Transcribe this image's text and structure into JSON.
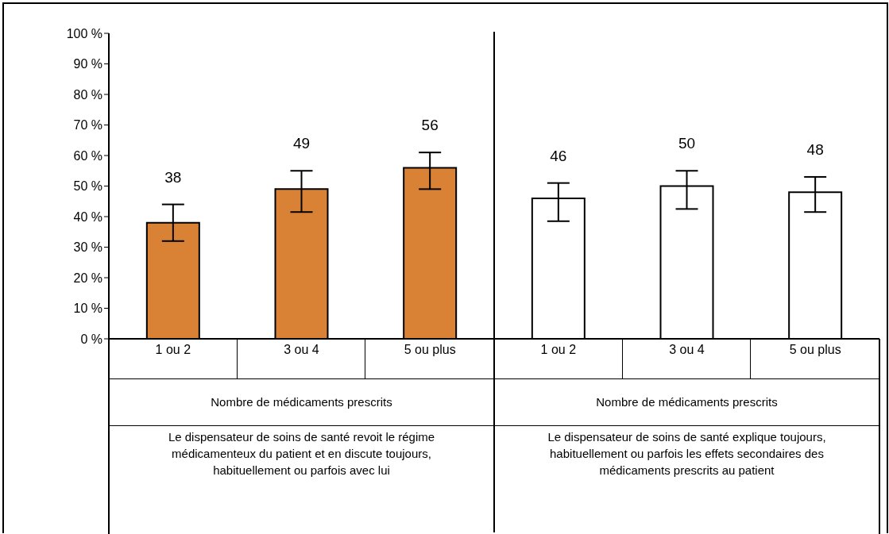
{
  "chart_data": {
    "type": "bar",
    "categories": [
      "1 ou 2",
      "3 ou 4",
      "5 ou plus",
      "1 ou 2",
      "3 ou 4",
      "5 ou plus"
    ],
    "values": [
      38,
      49,
      56,
      46,
      50,
      48
    ],
    "colors": [
      "#d98236",
      "#d98236",
      "#d98236",
      "#ffffff",
      "#ffffff",
      "#ffffff"
    ],
    "errors": [
      [
        32,
        44
      ],
      [
        41.5,
        55
      ],
      [
        49,
        61
      ],
      [
        38.5,
        51
      ],
      [
        42.5,
        55
      ],
      [
        41.5,
        53
      ]
    ],
    "data_labels": true,
    "ylim": [
      0,
      100
    ],
    "yticks": [
      {
        "value": 0,
        "label": "0 %"
      },
      {
        "value": 10,
        "label": "10 %"
      },
      {
        "value": 20,
        "label": "20 %"
      },
      {
        "value": 30,
        "label": "30 %"
      },
      {
        "value": 40,
        "label": "40 %"
      },
      {
        "value": 50,
        "label": "50 %"
      },
      {
        "value": 60,
        "label": "60 %"
      },
      {
        "value": 70,
        "label": "70 %"
      },
      {
        "value": 80,
        "label": "80 %"
      },
      {
        "value": 90,
        "label": "90 %"
      },
      {
        "value": 100,
        "label": "100 %"
      }
    ],
    "grid": false,
    "legend": false,
    "annotations": [
      "Nombre de médicaments prescrits",
      "Nombre de médicaments prescrits",
      "Le dispensateur de soins de santé revoit le régime médicamenteux du patient et en discute toujours, habituellement ou parfois avec lui",
      "Le dispensateur de soins de santé explique toujours, habituellement ou parfois les effets secondaires des médicaments prescrits au patient"
    ]
  }
}
